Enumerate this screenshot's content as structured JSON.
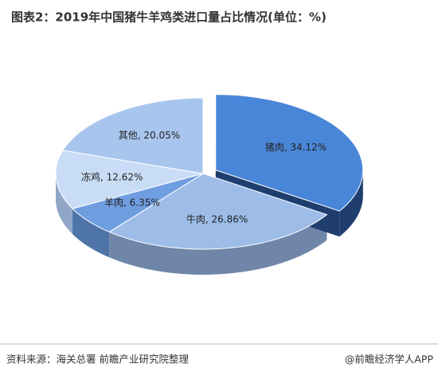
{
  "chart_data": {
    "type": "pie3d",
    "title": "图表2：2019年中国猪牛羊鸡类进口量占比情况(单位：%)",
    "values": [
      34.12,
      26.86,
      6.35,
      12.62,
      20.05
    ],
    "value_labels": [
      "猪肉, 34.12%",
      "牛肉, 26.86%",
      "羊肉, 6.35%",
      "冻鸡, 12.62%",
      "其他, 20.05%"
    ],
    "colors": [
      "#4a86d8",
      "#9dbde8",
      "#6f9ee0",
      "#c9dcf5",
      "#a8c5ee"
    ],
    "side_colors": [
      "#1f3d6e",
      "#6f86a8",
      "#4f74a8",
      "#8fa6c6",
      "#7990b4"
    ],
    "source": "资料来源：海关总署 前瞻产业研究院整理",
    "brand": "@前瞻经济学人APP"
  }
}
